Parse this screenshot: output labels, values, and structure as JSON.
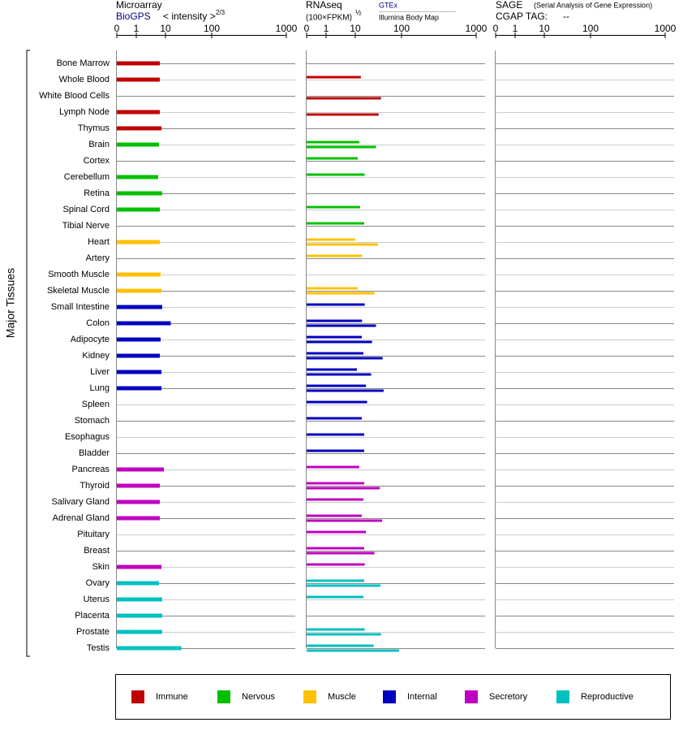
{
  "y_axis_label": "Major Tissues",
  "groups": [
    {
      "name": "Immune",
      "color": "#c00000",
      "tissues": [
        "Bone Marrow",
        "Whole Blood",
        "White Blood Cells",
        "Lymph Node",
        "Thymus"
      ]
    },
    {
      "name": "Nervous",
      "color": "#00c000",
      "tissues": [
        "Brain",
        "Cortex",
        "Cerebellum",
        "Retina",
        "Spinal Cord",
        "Tibial Nerve"
      ]
    },
    {
      "name": "Muscle",
      "color": "#ffc000",
      "tissues": [
        "Heart",
        "Artery",
        "Smooth Muscle",
        "Skeletal Muscle"
      ]
    },
    {
      "name": "Internal",
      "color": "#0000c0",
      "tissues": [
        "Small Intestine",
        "Colon",
        "Adipocyte",
        "Kidney",
        "Liver",
        "Lung",
        "Spleen",
        "Stomach",
        "Esophagus",
        "Bladder"
      ]
    },
    {
      "name": "Secretory",
      "color": "#c000c0",
      "tissues": [
        "Pancreas",
        "Thyroid",
        "Salivary Gland",
        "Adrenal Gland",
        "Pituitary",
        "Breast",
        "Skin"
      ]
    },
    {
      "name": "Reproductive",
      "color": "#00c0c0",
      "tissues": [
        "Ovary",
        "Uterus",
        "Placenta",
        "Prostate",
        "Testis"
      ]
    }
  ],
  "chart_data": [
    {
      "type": "bar",
      "title": "Microarray",
      "x_label": "< intensity >",
      "x_label_exponent": "2/3",
      "xlim": [
        0,
        1000
      ],
      "xticks": [
        0,
        1,
        10,
        100,
        1000
      ],
      "series": [
        {
          "name": "BioGPS",
          "color": "#000080",
          "values": [
            6.4,
            6.4,
            null,
            6.4,
            7.3,
            6,
            null,
            5.6,
            7.7,
            6.4,
            null,
            6.4,
            null,
            6.8,
            7.3,
            7.7,
            13,
            6.8,
            6.4,
            7.3,
            7.3,
            null,
            null,
            null,
            null,
            8.8,
            6.4,
            6.4,
            6.4,
            null,
            null,
            7.3,
            6,
            7.7,
            7.7,
            7.7,
            22
          ]
        }
      ]
    },
    {
      "type": "bar",
      "title": "RNAseq",
      "x_label": "(100×FPKM)",
      "x_label_exponent": "½",
      "xlim": [
        0,
        1000
      ],
      "xticks": [
        0,
        1,
        10,
        100,
        1000
      ],
      "series": [
        {
          "name": "GTEx",
          "color": "#000080",
          "values": [
            null,
            13.2,
            null,
            null,
            null,
            12.2,
            11.3,
            16,
            null,
            12.7,
            15.6,
            10,
            14,
            null,
            11.3,
            16,
            14,
            13.8,
            15,
            10.8,
            17,
            18,
            13.8,
            15.6,
            15.6,
            12.2,
            15.6,
            15,
            13.8,
            17,
            15.6,
            16,
            15.6,
            15,
            null,
            16,
            25
          ]
        },
        {
          "name": "Illumina Body Map",
          "color": "#000000",
          "values": [
            null,
            null,
            36,
            32,
            null,
            28,
            null,
            null,
            null,
            null,
            null,
            31,
            null,
            null,
            26,
            null,
            28,
            23,
            39,
            22,
            41,
            null,
            null,
            null,
            null,
            null,
            34,
            null,
            38,
            null,
            26,
            null,
            35,
            null,
            null,
            36,
            89
          ]
        }
      ]
    },
    {
      "type": "bar",
      "title": "SAGE",
      "subtitle": "(Serial Analysis of Gene Expression)",
      "tag_label": "CGAP TAG:",
      "tag_value": "--",
      "xlim": [
        0,
        1000
      ],
      "xticks": [
        0,
        1,
        10,
        100,
        1000
      ],
      "series": []
    }
  ]
}
